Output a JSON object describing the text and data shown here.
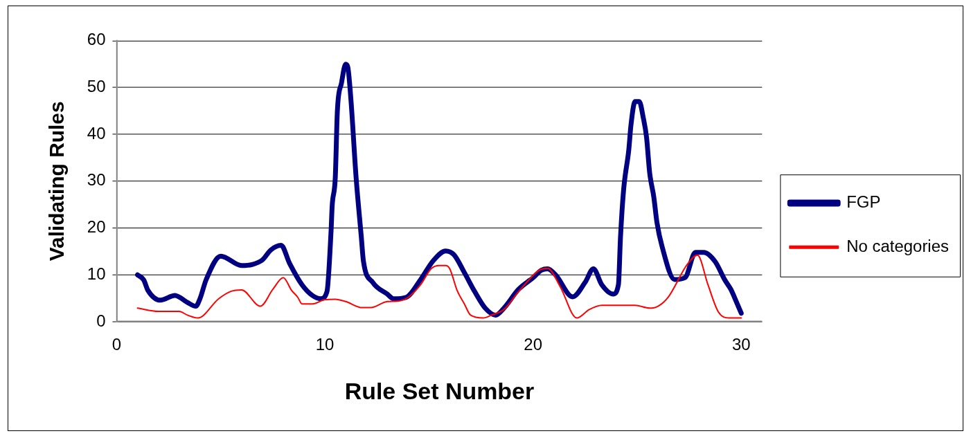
{
  "chart_data": {
    "type": "line",
    "xlabel": "Rule Set Number",
    "ylabel": "Validating Rules",
    "xlim": [
      0,
      31
    ],
    "xticks": [
      0,
      10,
      20,
      30
    ],
    "ylim": [
      0,
      60
    ],
    "yticks": [
      0,
      10,
      20,
      30,
      40,
      50,
      60
    ],
    "grid": "y",
    "legend": "right",
    "marker": "none",
    "line_style": "solid",
    "series": [
      {
        "name": "FGP",
        "color": "#000080",
        "x": [
          1,
          1.3,
          1.5,
          2.1,
          2.8,
          3.4,
          3.8,
          4.0,
          4.3,
          5.0,
          6.0,
          6.5,
          7.0,
          7.4,
          7.9,
          8.3,
          8.9,
          9.4,
          9.8,
          10.1,
          10.3,
          10.35,
          10.5,
          10.6,
          10.8,
          11.0,
          11.1,
          11.25,
          11.5,
          11.75,
          11.85,
          12.3,
          13.0,
          13.3,
          13.9,
          14.6,
          15.2,
          15.8,
          16.2,
          16.7,
          17.2,
          17.7,
          18.2,
          18.6,
          19.3,
          20.0,
          20.4,
          20.7,
          21.1,
          21.9,
          22.5,
          22.9,
          23.3,
          23.85,
          24.1,
          24.2,
          24.35,
          24.6,
          24.7,
          24.9,
          25.1,
          25.3,
          25.45,
          25.6,
          25.8,
          25.95,
          26.2,
          26.8,
          27.3,
          27.8,
          28.2,
          28.75,
          29.2,
          29.5,
          29.75,
          30
        ],
        "values": [
          10,
          8.9,
          6.7,
          4.6,
          5.6,
          4.1,
          3.3,
          4.9,
          9,
          14,
          12,
          12.2,
          13.2,
          15.3,
          16.3,
          12.5,
          7.9,
          5.6,
          4.9,
          6.4,
          19.6,
          24.7,
          30.8,
          45,
          51,
          55,
          54.4,
          47.5,
          30.8,
          18.1,
          13,
          8.4,
          5.9,
          4.9,
          5.2,
          9,
          13,
          15.1,
          14.3,
          10.5,
          6.4,
          2.9,
          1.4,
          2.9,
          6.9,
          9.4,
          11,
          11.3,
          9.9,
          5.3,
          8.4,
          11.3,
          7.9,
          5.9,
          7.9,
          18.1,
          28.2,
          36.8,
          41.9,
          47,
          47,
          43.4,
          39.4,
          31.8,
          26.6,
          21.2,
          16,
          9,
          9.4,
          14.8,
          14.8,
          12.8,
          9,
          6.9,
          4.4,
          1.8
        ]
      },
      {
        "name": "No categories",
        "color": "#ff0000",
        "x": [
          1,
          2.0,
          3.0,
          3.4,
          3.9,
          4.9,
          5.5,
          6.0,
          6.9,
          7.5,
          8.0,
          8.4,
          8.7,
          8.9,
          9.4,
          10.0,
          10.5,
          11.0,
          11.8,
          12.2,
          13.0,
          13.5,
          14.0,
          14.6,
          15.1,
          15.5,
          15.8,
          16.0,
          16.35,
          16.7,
          17.0,
          17.6,
          18.0,
          18.6,
          19.3,
          20.3,
          20.7,
          21.3,
          22.1,
          22.7,
          23.3,
          24.9,
          25.6,
          26.0,
          26.5,
          27.4,
          27.9,
          28.4,
          28.9,
          29.4,
          30
        ],
        "values": [
          2.9,
          2.2,
          2.2,
          1.4,
          0.8,
          4.9,
          6.5,
          6.8,
          3.3,
          6.9,
          9.4,
          6.7,
          5.2,
          3.8,
          3.8,
          4.7,
          4.8,
          4.3,
          3.0,
          3.0,
          4.3,
          4.4,
          5.2,
          7.9,
          11.3,
          12,
          12,
          11.3,
          6.7,
          3.8,
          1.4,
          0.8,
          1.4,
          2.6,
          6.4,
          11,
          11.4,
          7.5,
          0.8,
          2.6,
          3.5,
          3.5,
          2.9,
          3.3,
          5.3,
          12.2,
          14.2,
          7.9,
          2.1,
          0.8,
          0.8
        ]
      }
    ]
  }
}
